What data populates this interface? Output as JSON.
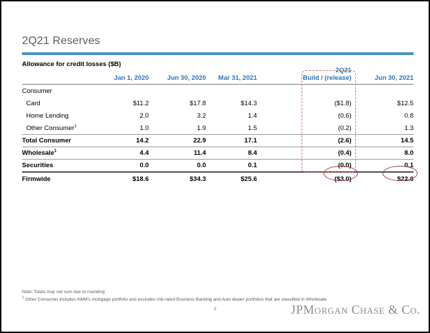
{
  "slide": {
    "title": "2Q21 Reserves",
    "table_title": "Allowance for credit losses ($B)",
    "page_number": "3",
    "logo_text": "JPMorgan Chase & Co."
  },
  "colors": {
    "title_bar_blue": "#4a90c2",
    "header_blue": "#2e74b5",
    "annotation_dashed_red": "#cc7573",
    "annotation_circle_red": "#9c3a38"
  },
  "table": {
    "col_headers": [
      "Jan 1, 2020",
      "Jun 30, 2020",
      "Mar 31, 2021",
      "Jun 30, 2021"
    ],
    "highlight_col_header": {
      "top": "2Q21",
      "bottom": "Build / (release)"
    },
    "rows": [
      {
        "label": "Consumer",
        "sup": "",
        "style": "section",
        "values": [
          "",
          "",
          "",
          "",
          ""
        ]
      },
      {
        "label": "Card",
        "sup": "",
        "style": "detail",
        "values": [
          "$11.2",
          "$17.8",
          "$14.3",
          "($1.8)",
          "$12.5"
        ]
      },
      {
        "label": "Home Lending",
        "sup": "",
        "style": "detail",
        "values": [
          "2.0",
          "3.2",
          "1.4",
          "(0.6)",
          "0.8"
        ]
      },
      {
        "label": "Other Consumer",
        "sup": "1",
        "style": "detail",
        "values": [
          "1.0",
          "1.9",
          "1.5",
          "(0.2)",
          "1.3"
        ]
      },
      {
        "label": "Total Consumer",
        "sup": "",
        "style": "total",
        "values": [
          "14.2",
          "22.9",
          "17.1",
          "(2.6)",
          "14.5"
        ]
      },
      {
        "label": "Wholesale",
        "sup": "1",
        "style": "total",
        "values": [
          "4.4",
          "11.4",
          "8.4",
          "(0.4)",
          "8.0"
        ]
      },
      {
        "label": "Securities",
        "sup": "",
        "style": "total",
        "values": [
          "0.0",
          "0.0",
          "0.1",
          "(0.0)",
          "0.1"
        ]
      },
      {
        "label": "Firmwide",
        "sup": "",
        "style": "grand",
        "values": [
          "$18.6",
          "$34.3",
          "$25.6",
          "($3.0)",
          "$22.6"
        ]
      }
    ]
  },
  "footnotes": {
    "note": "Note: Totals may not sum due to rounding",
    "other_sup": "1",
    "other": " Other Consumer includes AWM's mortgage portfolio and excludes risk-rated Business Banking and Auto dealer portfolios that are classified in Wholesale"
  }
}
